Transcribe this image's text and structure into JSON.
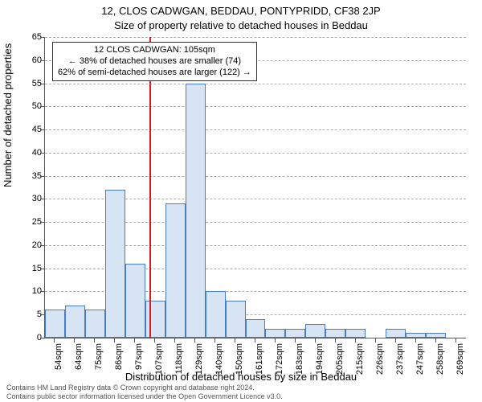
{
  "title": "12, CLOS CADWGAN, BEDDAU, PONTYPRIDD, CF38 2JP",
  "subtitle": "Size of property relative to detached houses in Beddau",
  "ylabel": "Number of detached properties",
  "xlabel": "Distribution of detached houses by size in Beddau",
  "attribution_line1": "Contains HM Land Registry data © Crown copyright and database right 2024.",
  "attribution_line2": "Contains public sector information licensed under the Open Government Licence v3.0.",
  "annotation": {
    "line1": "12 CLOS CADWGAN: 105sqm",
    "line2": "← 38% of detached houses are smaller (74)",
    "line3": "62% of semi-detached houses are larger (122) →"
  },
  "chart": {
    "type": "histogram",
    "background_color": "#ffffff",
    "grid_color": "#aaaaaa",
    "axis_color": "#555555",
    "ylim": [
      0,
      65
    ],
    "ytick_step": 5,
    "bar_fill": "#d7e4f4",
    "bar_stroke": "#4a7cc0",
    "refline_color": "#d21f1f",
    "refline_x": 105,
    "x_start": 49,
    "x_bin_width": 10.77,
    "x_bins": 21,
    "x_ticks": [
      "54sqm",
      "64sqm",
      "75sqm",
      "86sqm",
      "97sqm",
      "107sqm",
      "118sqm",
      "129sqm",
      "140sqm",
      "150sqm",
      "161sqm",
      "172sqm",
      "183sqm",
      "194sqm",
      "205sqm",
      "215sqm",
      "226sqm",
      "237sqm",
      "247sqm",
      "258sqm",
      "269sqm"
    ],
    "values": [
      6,
      7,
      6,
      32,
      16,
      8,
      29,
      55,
      10,
      8,
      4,
      2,
      2,
      3,
      2,
      2,
      0,
      2,
      1,
      1,
      0
    ],
    "title_fontsize": 13,
    "label_fontsize": 13,
    "tick_fontsize": 11,
    "anno_fontsize": 11
  }
}
